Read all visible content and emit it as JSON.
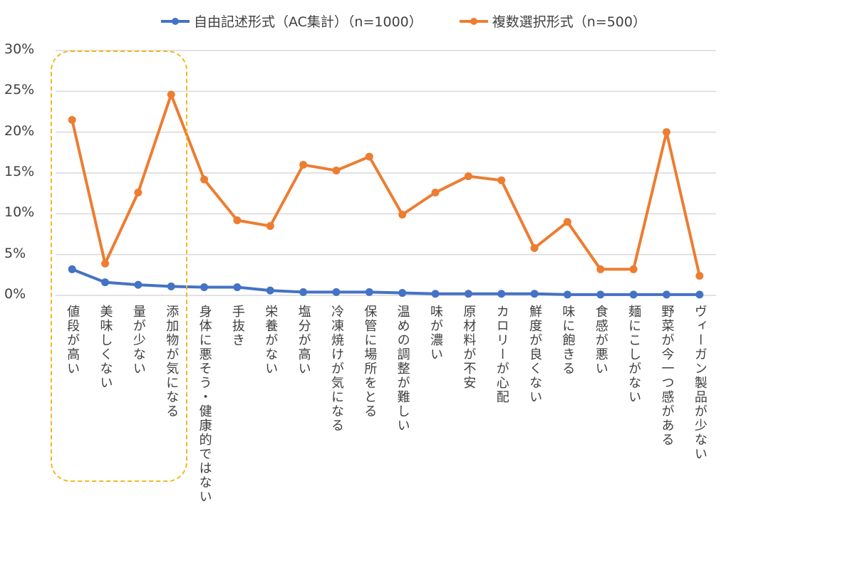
{
  "chart_data": {
    "type": "line",
    "title": "",
    "xlabel": "",
    "ylabel": "",
    "ylim": [
      0,
      30
    ],
    "yticks": [
      "0%",
      "5%",
      "10%",
      "15%",
      "20%",
      "25%",
      "30%"
    ],
    "grid": true,
    "legend_position": "top",
    "categories": [
      "値段が高い",
      "美味しくない",
      "量が少ない",
      "添加物が気になる",
      "身体に悪そう・健康的ではない",
      "手抜き",
      "栄養がない",
      "塩分が高い",
      "冷凍焼けが気になる",
      "保管に場所をとる",
      "温めの調整が難しい",
      "味が濃い",
      "原材料が不安",
      "カロリーが心配",
      "鮮度が良くない",
      "味に飽きる",
      "食感が悪い",
      "麺にこしがない",
      "野菜が今一つ感がある",
      "ヴィーガン製品が少ない"
    ],
    "series": [
      {
        "name": "自由記述形式（AC集計）（n=1000）",
        "color": "#4472c4",
        "values": [
          3.2,
          1.6,
          1.3,
          1.1,
          1.0,
          1.0,
          0.6,
          0.4,
          0.4,
          0.4,
          0.3,
          0.2,
          0.2,
          0.2,
          0.2,
          0.1,
          0.1,
          0.1,
          0.1,
          0.1
        ]
      },
      {
        "name": "複数選択形式（n=500）",
        "color": "#ed7d31",
        "values": [
          21.5,
          3.9,
          12.6,
          24.6,
          14.2,
          9.2,
          8.5,
          16.0,
          15.3,
          17.0,
          9.9,
          12.6,
          14.6,
          14.1,
          5.8,
          9.0,
          3.2,
          3.2,
          20.0,
          2.4
        ]
      }
    ],
    "annotation_color": "#f2b81c"
  }
}
